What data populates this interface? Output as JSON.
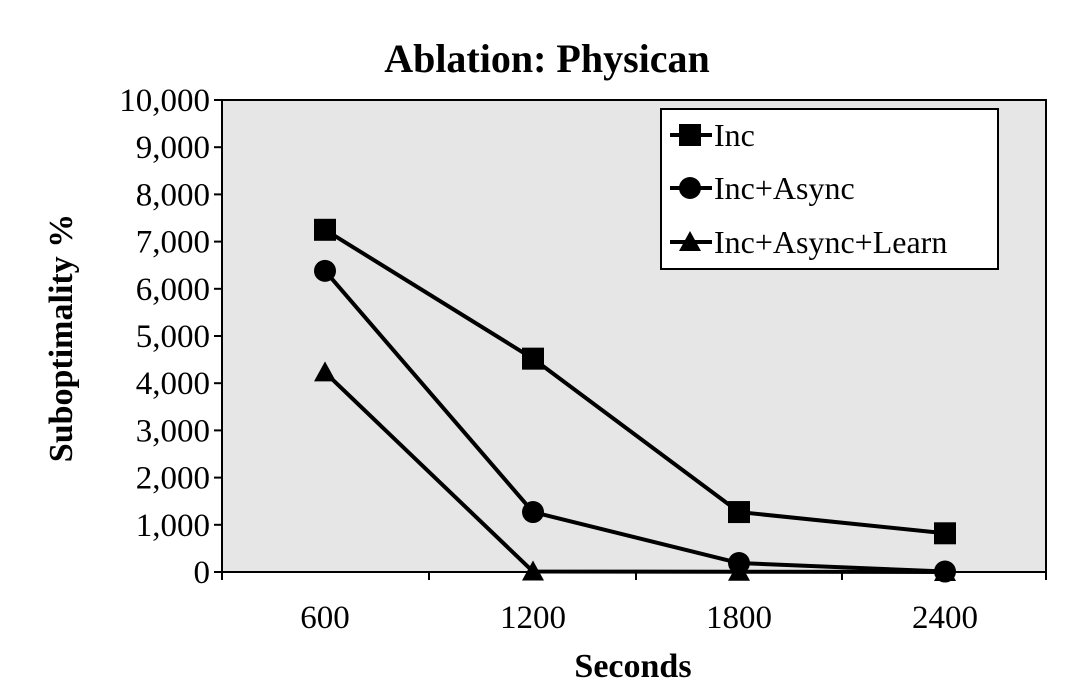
{
  "chart_data": {
    "type": "line",
    "title": "Ablation: Physican",
    "xlabel": "Seconds",
    "ylabel": "Suboptimality %",
    "categories": [
      "600",
      "1200",
      "1800",
      "2400"
    ],
    "yticks": [
      "0",
      "1,000",
      "2,000",
      "3,000",
      "4,000",
      "5,000",
      "6,000",
      "7,000",
      "8,000",
      "9,000",
      "10,000"
    ],
    "ylim": [
      0,
      10000
    ],
    "grid": false,
    "legend_position": "top-right",
    "plot_background": "#e6e6e6",
    "line_color": "#000000",
    "series": [
      {
        "name": "Inc",
        "marker": "square",
        "values": [
          7250,
          4520,
          1270,
          820
        ]
      },
      {
        "name": "Inc+Async",
        "marker": "circle",
        "values": [
          6380,
          1270,
          190,
          10
        ]
      },
      {
        "name": "Inc+Async+Learn",
        "marker": "triangle",
        "values": [
          4230,
          10,
          5,
          0
        ]
      }
    ]
  }
}
